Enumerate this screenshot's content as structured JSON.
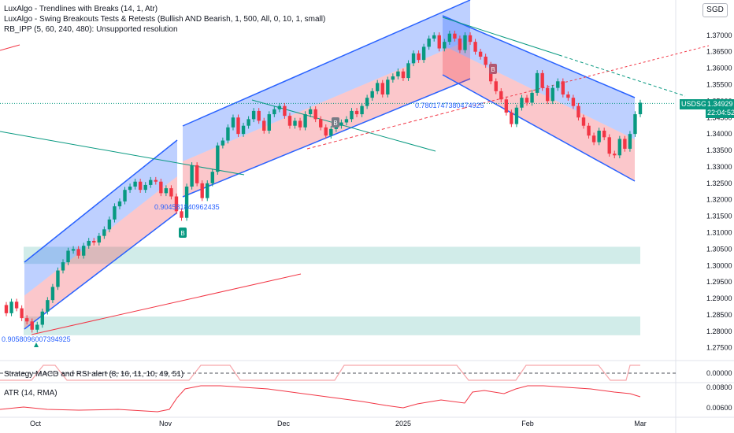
{
  "legend": {
    "line1": "LuxAlgo - Trendlines with Breaks (14, 1, Atr)",
    "line2": "LuxAlgo - Swing Breakouts Tests & Retests (Bullish AND Bearish, 1, 500, All, 0, 10, 1, small)",
    "line3": "RB_IPP (5, 60, 240, 480): Unsupported resolution"
  },
  "currency": "SGD",
  "symbol_tag": "USDSGD",
  "last_price": "1.34929",
  "countdown": "22:04:52",
  "strategy_title": "Strategy MACD and RSI alert (8, 16, 11, 10, 49, 51)",
  "atr_title": "ATR (14, RMA)",
  "annotations": [
    "0.9058096007394925",
    "0.904581840962435",
    "0.7801747380474925"
  ],
  "signal_letter": "B",
  "colors": {
    "up": "#089981",
    "down": "#f23645",
    "channel": "#2962ff",
    "zone": "#b2dfdb"
  },
  "chart_data": {
    "type": "candlestick",
    "x_ticks": [
      "Oct",
      "Nov",
      "Dec",
      "2025",
      "Feb",
      "Mar"
    ],
    "y_ticks": [
      "1.37000",
      "1.36500",
      "1.36000",
      "1.35500",
      "1.35000",
      "1.34500",
      "1.34000",
      "1.33500",
      "1.33000",
      "1.32500",
      "1.32000",
      "1.31500",
      "1.31000",
      "1.30500",
      "1.30000",
      "1.29500",
      "1.29000",
      "1.28500",
      "1.28000",
      "1.27500"
    ],
    "ylim": [
      1.2735,
      1.3745
    ],
    "strategy_ticks": [
      "0.00000"
    ],
    "atr_ticks": [
      "0.00800",
      "0.00600"
    ],
    "closes": [
      1.2855,
      1.289,
      1.287,
      1.284,
      1.283,
      1.2805,
      1.282,
      1.286,
      1.2895,
      1.2935,
      1.2985,
      1.301,
      1.3045,
      1.305,
      1.303,
      1.306,
      1.3075,
      1.307,
      1.309,
      1.311,
      1.314,
      1.318,
      1.3195,
      1.323,
      1.324,
      1.3255,
      1.323,
      1.3245,
      1.326,
      1.3255,
      1.322,
      1.3235,
      1.321,
      1.3165,
      1.3145,
      1.324,
      1.3305,
      1.325,
      1.3205,
      1.325,
      1.3285,
      1.3365,
      1.338,
      1.342,
      1.345,
      1.34,
      1.3425,
      1.3445,
      1.347,
      1.344,
      1.341,
      1.346,
      1.3475,
      1.3485,
      1.3455,
      1.3425,
      1.344,
      1.342,
      1.346,
      1.3475,
      1.3445,
      1.342,
      1.3395,
      1.3415,
      1.3425,
      1.3435,
      1.3445,
      1.347,
      1.346,
      1.3485,
      1.351,
      1.353,
      1.3555,
      1.352,
      1.3565,
      1.3575,
      1.359,
      1.357,
      1.3615,
      1.3645,
      1.3625,
      1.3665,
      1.369,
      1.37,
      1.366,
      1.368,
      1.3705,
      1.369,
      1.3655,
      1.37,
      1.368,
      1.365,
      1.3635,
      1.361,
      1.356,
      1.353,
      1.3505,
      1.3465,
      1.343,
      1.348,
      1.351,
      1.3495,
      1.3525,
      1.3585,
      1.354,
      1.35,
      1.354,
      1.356,
      1.352,
      1.351,
      1.3485,
      1.345,
      1.3425,
      1.3395,
      1.3375,
      1.341,
      1.339,
      1.334,
      1.3335,
      1.3385,
      1.3355,
      1.34,
      1.346,
      1.3495
    ]
  }
}
